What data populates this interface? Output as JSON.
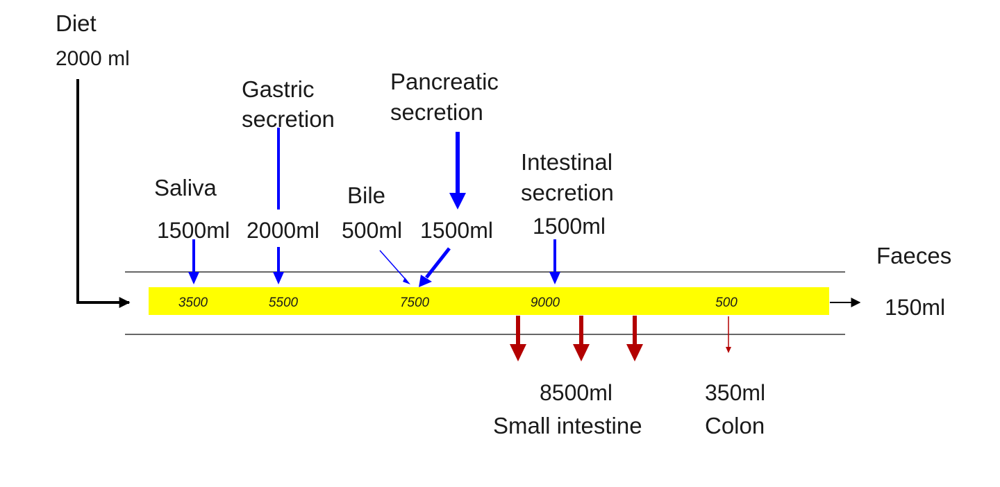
{
  "diet": {
    "title": "Diet",
    "volume": "2000 ml"
  },
  "secretions": {
    "saliva": {
      "name": "Saliva",
      "volume": "1500ml"
    },
    "gastric": {
      "name_line1": "Gastric",
      "name_line2": "secretion",
      "volume": "2000ml"
    },
    "bile": {
      "name": "Bile",
      "volume": "500ml"
    },
    "pancreatic": {
      "name_line1": "Pancreatic",
      "name_line2": "secretion",
      "volume": "1500ml"
    },
    "intestinal": {
      "name_line1": "Intestinal",
      "name_line2": "secretion",
      "volume": "1500ml"
    }
  },
  "gut_flow_values": [
    "3500",
    "5500",
    "7500",
    "9000",
    "500"
  ],
  "absorption": {
    "small_intestine": {
      "volume": "8500ml",
      "label": "Small intestine"
    },
    "colon": {
      "volume": "350ml",
      "label": "Colon"
    }
  },
  "faeces": {
    "label": "Faeces",
    "volume": "150ml"
  },
  "colors": {
    "gut_tube": "#ffff00",
    "secretion_arrow": "#0000ff",
    "absorption_arrow": "#b30000",
    "wall_line": "#666666",
    "diet_arrow": "#000000"
  }
}
